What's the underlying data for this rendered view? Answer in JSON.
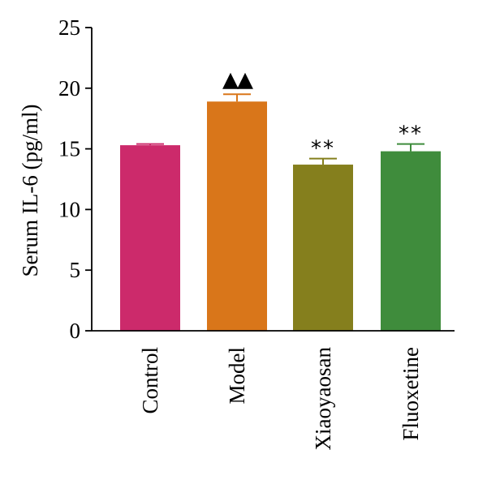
{
  "chart_data": {
    "type": "bar",
    "title": "",
    "xlabel": "",
    "ylabel": "Serum IL-6 (pg/ml)",
    "ylim": [
      0,
      25
    ],
    "yticks": [
      0,
      5,
      10,
      15,
      20,
      25
    ],
    "categories": [
      "Control",
      "Model",
      "Xiaoyaosan",
      "Fluoxetine"
    ],
    "values": [
      15.3,
      18.9,
      13.7,
      14.8
    ],
    "errors": [
      0.1,
      0.6,
      0.5,
      0.6
    ],
    "colors": [
      "#cc2a6b",
      "#d9761a",
      "#857f1d",
      "#3f8c3c"
    ],
    "markers": [
      "",
      "▲▲",
      "**",
      "**"
    ],
    "grid": false
  }
}
